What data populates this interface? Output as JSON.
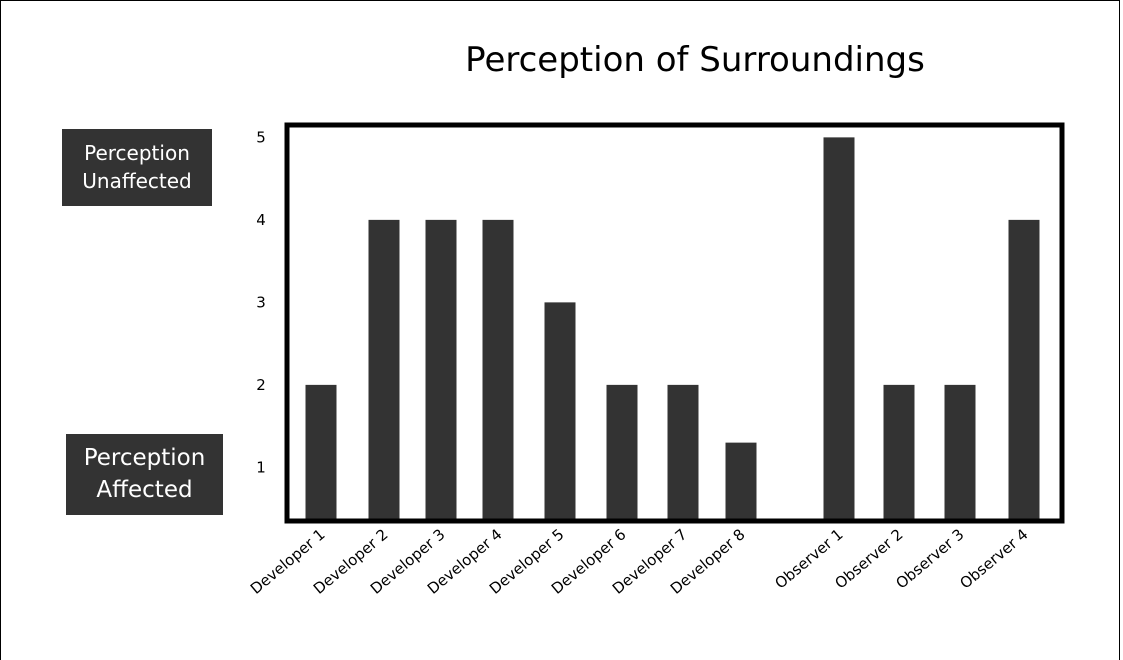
{
  "chart_data": {
    "type": "bar",
    "title": "Perception of Surroundings",
    "xlabel": "",
    "ylabel": "",
    "categories": [
      "Developer 1",
      "Developer 2",
      "Developer 3",
      "Developer 4",
      "Developer 5",
      "Developer 6",
      "Developer 7",
      "Developer 8",
      "Observer 1",
      "Observer 2",
      "Observer 3",
      "Observer 4"
    ],
    "values": [
      2,
      4,
      4,
      4,
      3,
      2,
      2,
      1.3,
      5,
      2,
      2,
      4
    ],
    "y_ticks": [
      1,
      2,
      3,
      4,
      5
    ],
    "ylim": [
      0.35,
      5.15
    ],
    "grid": false,
    "bar_color": "#333333",
    "axis_annotations": {
      "top": "Perception Unaffected",
      "bottom": "Perception Affected"
    }
  }
}
